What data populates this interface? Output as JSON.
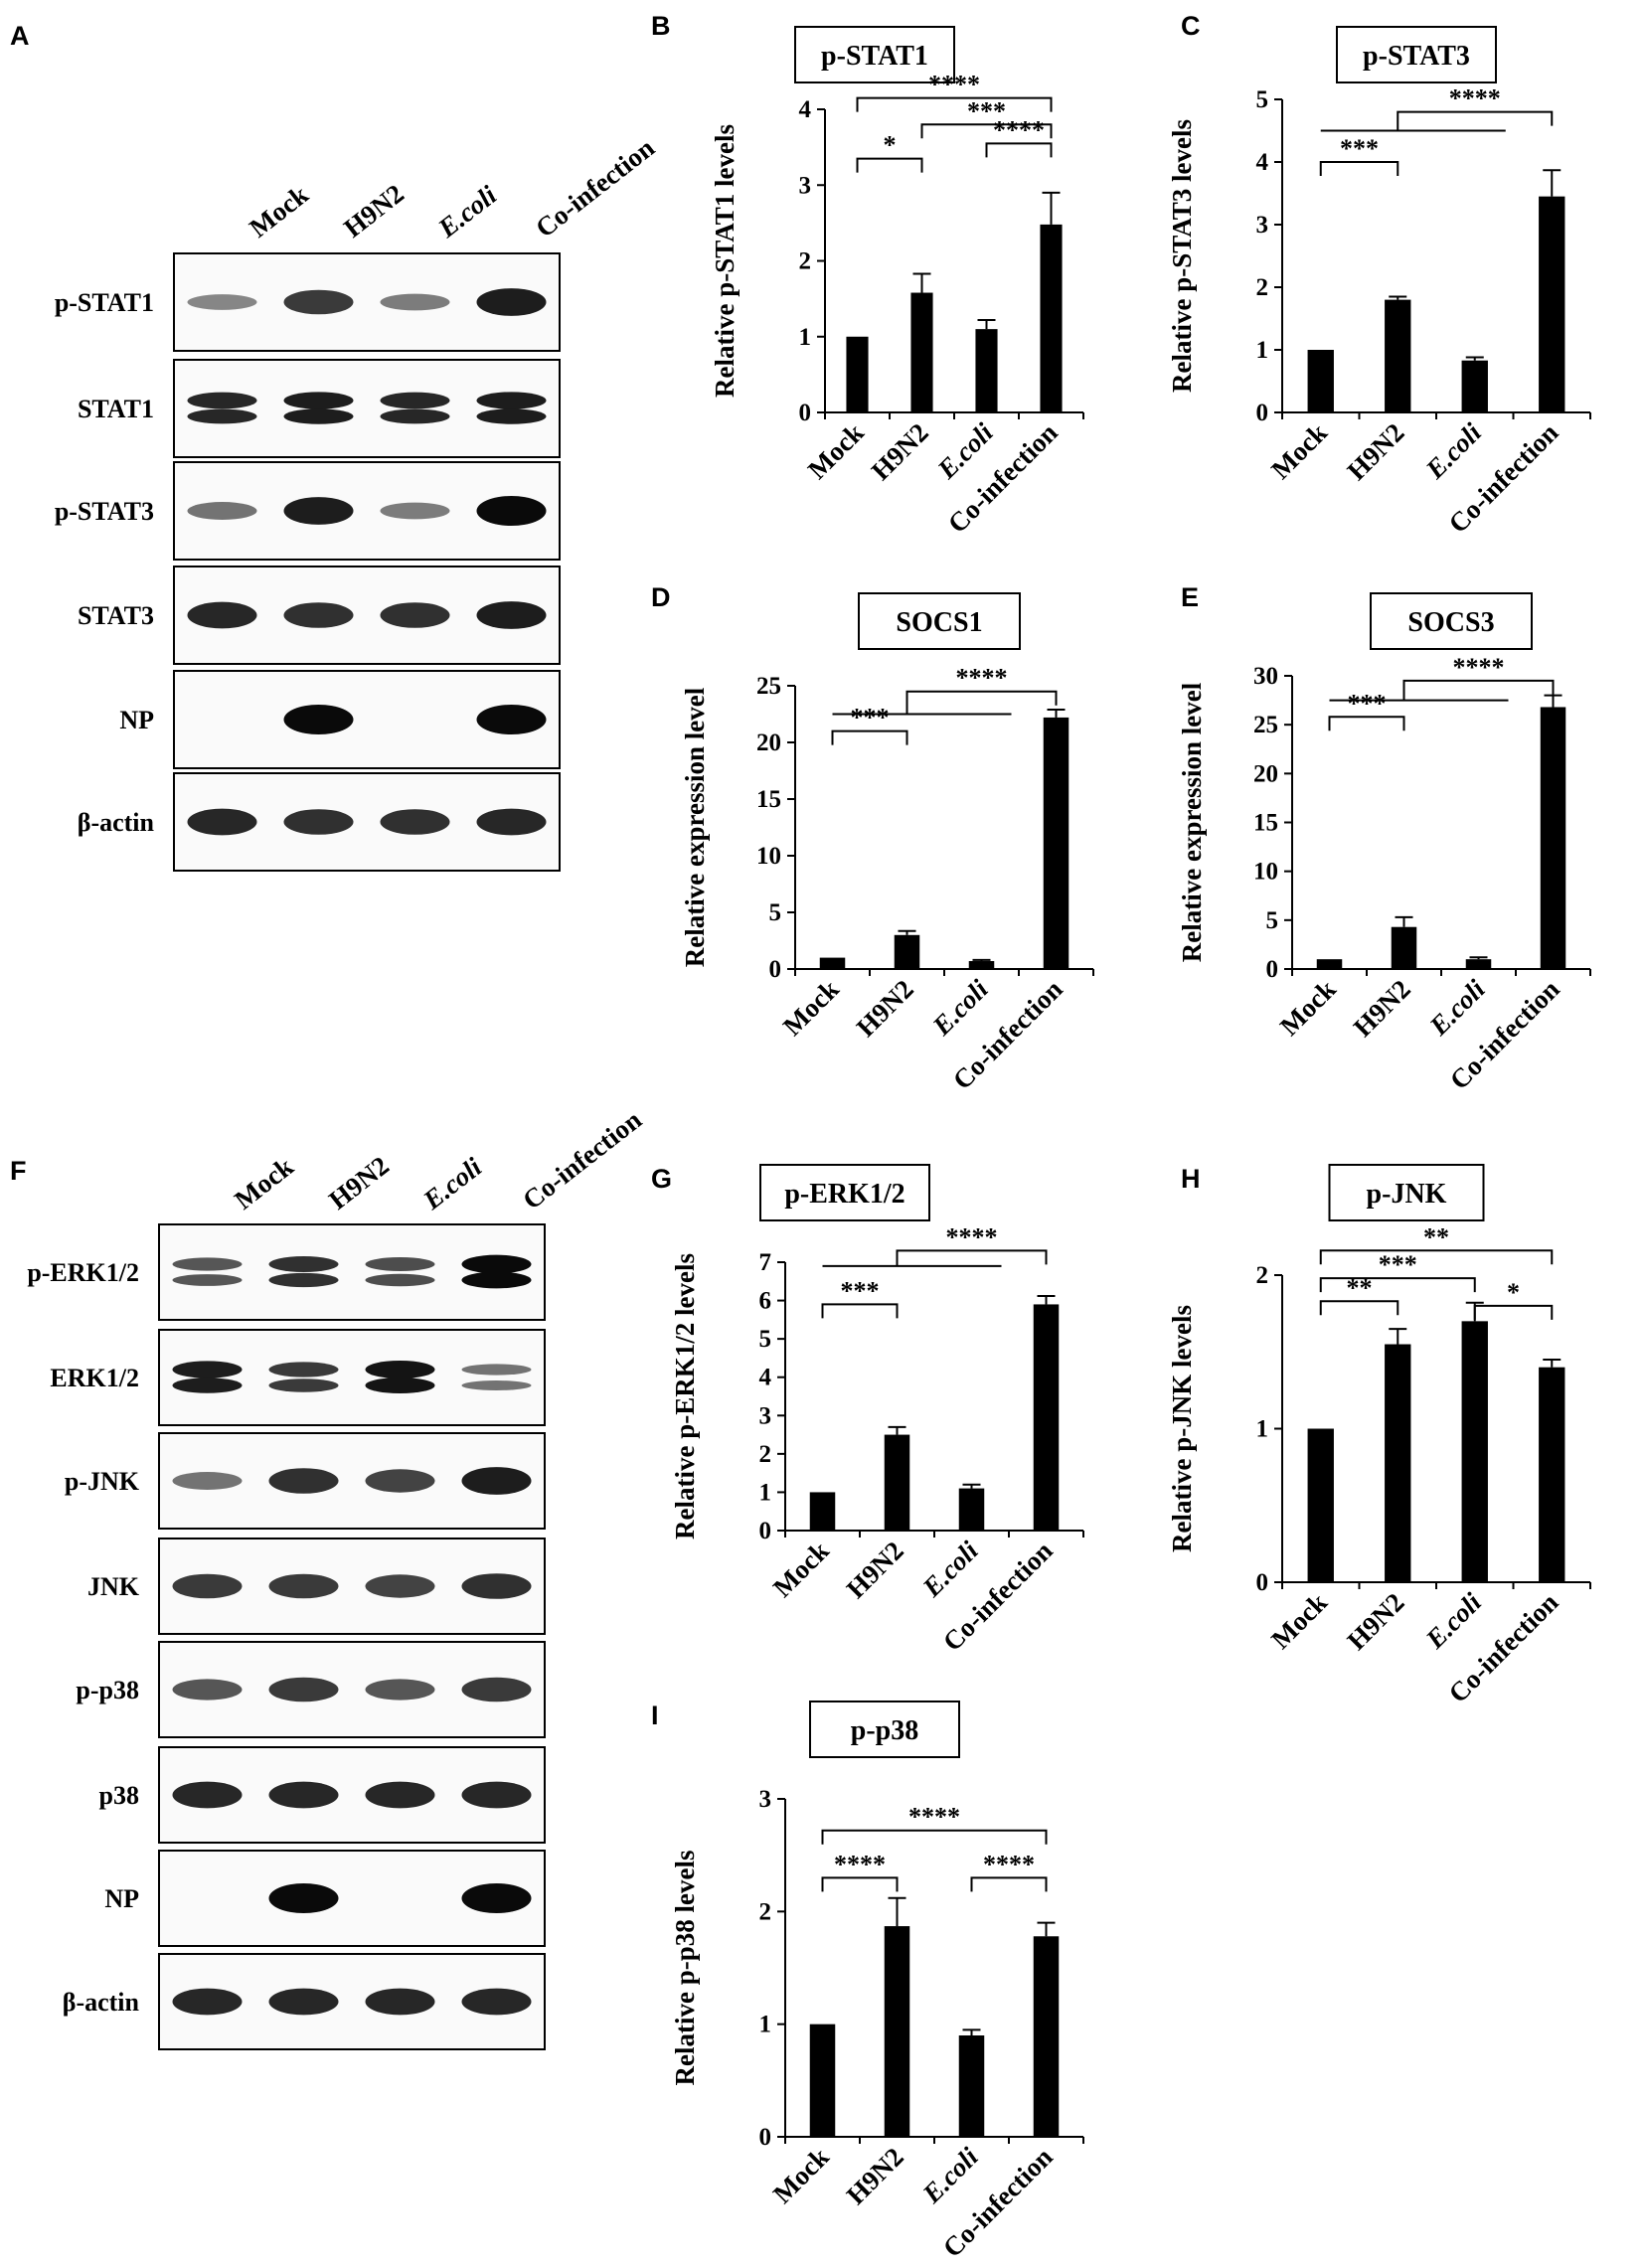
{
  "colors": {
    "bar": "#000000",
    "axis": "#000000",
    "background": "#ffffff"
  },
  "blots": [
    {
      "letter": "A",
      "lanes": [
        "Mock",
        "H9N2",
        "E.coli",
        "Co-infection"
      ],
      "rows": [
        {
          "label": "p-STAT1",
          "intensity": [
            0.35,
            0.75,
            0.4,
            0.9
          ],
          "doublet": false
        },
        {
          "label": "STAT1",
          "intensity": [
            0.85,
            0.9,
            0.85,
            0.9
          ],
          "doublet": true
        },
        {
          "label": "p-STAT3",
          "intensity": [
            0.45,
            0.9,
            0.4,
            1.0
          ],
          "doublet": false
        },
        {
          "label": "STAT3",
          "intensity": [
            0.85,
            0.8,
            0.8,
            0.9
          ],
          "doublet": false
        },
        {
          "label": "NP",
          "intensity": [
            0,
            1.0,
            0,
            1.0
          ],
          "doublet": false
        },
        {
          "label": "β-actin",
          "intensity": [
            0.85,
            0.8,
            0.8,
            0.85
          ],
          "doublet": false
        }
      ]
    },
    {
      "letter": "F",
      "lanes": [
        "Mock",
        "H9N2",
        "E.coli",
        "Co-infection"
      ],
      "rows": [
        {
          "label": "p-ERK1/2",
          "intensity": [
            0.6,
            0.8,
            0.65,
            1.0
          ],
          "doublet": true
        },
        {
          "label": "ERK1/2",
          "intensity": [
            0.9,
            0.75,
            0.95,
            0.45
          ],
          "doublet": true
        },
        {
          "label": "p-JNK",
          "intensity": [
            0.45,
            0.8,
            0.7,
            0.9
          ],
          "doublet": false
        },
        {
          "label": "JNK",
          "intensity": [
            0.75,
            0.75,
            0.7,
            0.8
          ],
          "doublet": false
        },
        {
          "label": "p-p38",
          "intensity": [
            0.6,
            0.75,
            0.6,
            0.75
          ],
          "doublet": false
        },
        {
          "label": "p38",
          "intensity": [
            0.85,
            0.85,
            0.85,
            0.85
          ],
          "doublet": false
        },
        {
          "label": "NP",
          "intensity": [
            0,
            1.0,
            0,
            1.0
          ],
          "doublet": false
        },
        {
          "label": "β-actin",
          "intensity": [
            0.85,
            0.85,
            0.85,
            0.85
          ],
          "doublet": false
        }
      ]
    }
  ],
  "chart_data": [
    {
      "letter": "B",
      "type": "bar",
      "title": "p-STAT1",
      "ylabel": "Relative p-STAT1 levels",
      "categories": [
        "Mock",
        "H9N2",
        "E.coli",
        "Co-infection"
      ],
      "values": [
        1.0,
        1.58,
        1.1,
        2.48
      ],
      "errors": [
        0,
        0.25,
        0.12,
        0.42
      ],
      "ylim": [
        0,
        4
      ],
      "yticks": [
        "0",
        "1",
        "2",
        "3",
        "4"
      ],
      "brackets": [
        {
          "from": 0,
          "to": 1,
          "label": "*",
          "y": 3.35
        },
        {
          "from": 2,
          "to": 3,
          "label": "****",
          "y": 3.55
        },
        {
          "from": 1,
          "to": 3,
          "label": "***",
          "y": 3.8
        },
        {
          "from": 0,
          "to": 3,
          "label": "****",
          "y": 4.15
        }
      ]
    },
    {
      "letter": "C",
      "type": "bar",
      "title": "p-STAT3",
      "ylabel": "Relative p-STAT3 levels",
      "categories": [
        "Mock",
        "H9N2",
        "E.coli",
        "Co-infection"
      ],
      "values": [
        1.0,
        1.8,
        0.83,
        3.45
      ],
      "errors": [
        0,
        0.05,
        0.05,
        0.42
      ],
      "ylim": [
        0,
        5
      ],
      "yticks": [
        "0",
        "1",
        "2",
        "3",
        "4",
        "5"
      ],
      "brackets": [
        {
          "from": 0,
          "to": 1,
          "label": "***",
          "y": 4.0
        },
        {
          "from": 0,
          "to": 3,
          "label": "****",
          "y": 4.8,
          "group_from": 0,
          "group_to": 2,
          "group_y": 4.5
        }
      ]
    },
    {
      "letter": "D",
      "type": "bar",
      "title": "SOCS1",
      "ylabel": "Relative expression level",
      "categories": [
        "Mock",
        "H9N2",
        "E.coli",
        "Co-infection"
      ],
      "values": [
        1.0,
        3.0,
        0.7,
        22.2
      ],
      "errors": [
        0,
        0.35,
        0.1,
        0.7
      ],
      "ylim": [
        0,
        25
      ],
      "yticks": [
        "0",
        "5",
        "10",
        "15",
        "20",
        "25"
      ],
      "brackets": [
        {
          "from": 0,
          "to": 1,
          "label": "***",
          "y": 21.0
        },
        {
          "from": 0,
          "to": 3,
          "label": "****",
          "y": 24.5,
          "group_from": 0,
          "group_to": 2,
          "group_y": 22.5
        }
      ]
    },
    {
      "letter": "E",
      "type": "bar",
      "title": "SOCS3",
      "ylabel": "Relative expression level",
      "categories": [
        "Mock",
        "H9N2",
        "E.coli",
        "Co-infection"
      ],
      "values": [
        1.0,
        4.3,
        1.0,
        26.8
      ],
      "errors": [
        0,
        1.0,
        0.2,
        1.2
      ],
      "ylim": [
        0,
        30
      ],
      "yticks": [
        "0",
        "5",
        "10",
        "15",
        "20",
        "25",
        "30"
      ],
      "brackets": [
        {
          "from": 0,
          "to": 1,
          "label": "***",
          "y": 25.8
        },
        {
          "from": 0,
          "to": 3,
          "label": "****",
          "y": 29.5,
          "group_from": 0,
          "group_to": 2,
          "group_y": 27.5
        }
      ]
    },
    {
      "letter": "G",
      "type": "bar",
      "title": "p-ERK1/2",
      "ylabel": "Relative p-ERK1/2 levels",
      "categories": [
        "Mock",
        "H9N2",
        "E.coli",
        "Co-infection"
      ],
      "values": [
        1.0,
        2.5,
        1.1,
        5.9
      ],
      "errors": [
        0,
        0.2,
        0.1,
        0.22
      ],
      "ylim": [
        0,
        7
      ],
      "yticks": [
        "0",
        "1",
        "2",
        "3",
        "4",
        "5",
        "6",
        "7"
      ],
      "brackets": [
        {
          "from": 0,
          "to": 1,
          "label": "***",
          "y": 5.9
        },
        {
          "from": 0,
          "to": 3,
          "label": "****",
          "y": 7.3,
          "group_from": 0,
          "group_to": 2,
          "group_y": 6.9
        }
      ]
    },
    {
      "letter": "H",
      "type": "bar",
      "title": "p-JNK",
      "ylabel": "Relative p-JNK levels",
      "categories": [
        "Mock",
        "H9N2",
        "E.coli",
        "Co-infection"
      ],
      "values": [
        1.0,
        1.55,
        1.7,
        1.4
      ],
      "errors": [
        0,
        0.1,
        0.12,
        0.05
      ],
      "ylim": [
        0,
        2
      ],
      "yticks": [
        "0",
        "1",
        "2"
      ],
      "brackets": [
        {
          "from": 0,
          "to": 1,
          "label": "**",
          "y": 1.83
        },
        {
          "from": 2,
          "to": 3,
          "label": "*",
          "y": 1.8
        },
        {
          "from": 0,
          "to": 2,
          "label": "***",
          "y": 1.98
        },
        {
          "from": 0,
          "to": 3,
          "label": "**",
          "y": 2.16
        }
      ]
    },
    {
      "letter": "I",
      "type": "bar",
      "title": "p-p38",
      "ylabel": "Relative p-p38 levels",
      "categories": [
        "Mock",
        "H9N2",
        "E.coli",
        "Co-infection"
      ],
      "values": [
        1.0,
        1.87,
        0.9,
        1.78
      ],
      "errors": [
        0,
        0.25,
        0.05,
        0.12
      ],
      "ylim": [
        0,
        3
      ],
      "yticks": [
        "0",
        "1",
        "2",
        "3"
      ],
      "brackets": [
        {
          "from": 0,
          "to": 1,
          "label": "****",
          "y": 2.3
        },
        {
          "from": 2,
          "to": 3,
          "label": "****",
          "y": 2.3
        },
        {
          "from": 0,
          "to": 3,
          "label": "****",
          "y": 2.72
        }
      ]
    }
  ]
}
